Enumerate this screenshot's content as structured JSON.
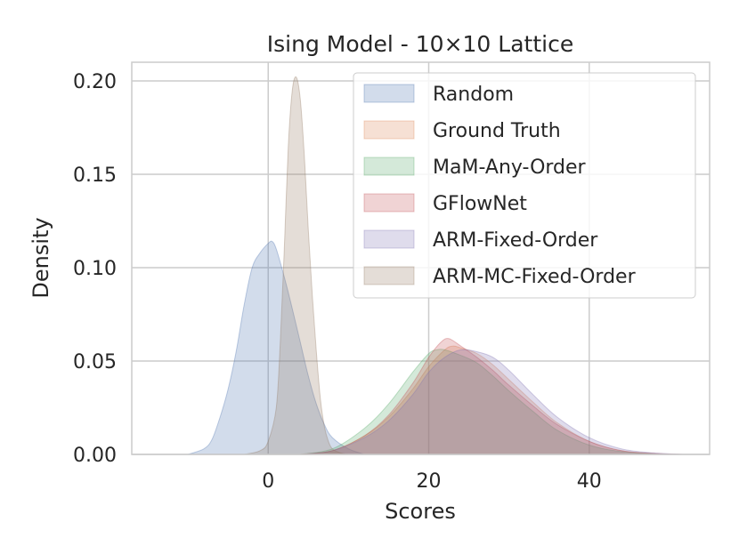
{
  "chart_data": {
    "type": "area",
    "title": "Ising Model - 10×10 Lattice",
    "xlabel": "Scores",
    "ylabel": "Density",
    "xlim": [
      -17,
      55
    ],
    "ylim": [
      0,
      0.21
    ],
    "xticks": [
      0,
      20,
      40
    ],
    "xtick_labels": [
      "0",
      "20",
      "40"
    ],
    "yticks": [
      0,
      0.05,
      0.1,
      0.15,
      0.2
    ],
    "ytick_labels": [
      "0.00",
      "0.05",
      "0.10",
      "0.15",
      "0.20"
    ],
    "grid": true,
    "legend_position": "top-right",
    "series": [
      {
        "name": "Random",
        "color": "#4c72b0",
        "x": [
          -10,
          -8,
          -7,
          -6,
          -5,
          -4,
          -3,
          -2,
          -1,
          0,
          0.5,
          1,
          2,
          3,
          4,
          5,
          6,
          7,
          8,
          10,
          12
        ],
        "y": [
          0.0,
          0.003,
          0.008,
          0.02,
          0.035,
          0.055,
          0.08,
          0.1,
          0.108,
          0.113,
          0.114,
          0.11,
          0.095,
          0.078,
          0.06,
          0.042,
          0.027,
          0.016,
          0.009,
          0.003,
          0.0
        ]
      },
      {
        "name": "Ground Truth",
        "color": "#dd8452",
        "x": [
          4,
          8,
          12,
          15,
          18,
          20,
          22,
          23,
          24,
          26,
          28,
          30,
          33,
          36,
          40,
          44,
          48,
          52
        ],
        "y": [
          0.0,
          0.002,
          0.01,
          0.02,
          0.035,
          0.047,
          0.056,
          0.058,
          0.057,
          0.054,
          0.048,
          0.04,
          0.028,
          0.017,
          0.007,
          0.002,
          0.0005,
          0.0
        ]
      },
      {
        "name": "MaM-Any-Order",
        "color": "#55a868",
        "x": [
          4,
          8,
          12,
          15,
          18,
          20,
          21,
          22,
          24,
          26,
          28,
          30,
          33,
          36,
          40,
          44,
          48,
          50
        ],
        "y": [
          0.0,
          0.003,
          0.014,
          0.027,
          0.044,
          0.054,
          0.056,
          0.056,
          0.053,
          0.049,
          0.042,
          0.034,
          0.023,
          0.013,
          0.005,
          0.0015,
          0.0003,
          0.0
        ]
      },
      {
        "name": "GFlowNet",
        "color": "#c44e52",
        "x": [
          4,
          8,
          12,
          15,
          18,
          20,
          21.5,
          22.5,
          24,
          26,
          28,
          30,
          33,
          36,
          40,
          44,
          48,
          52
        ],
        "y": [
          0.0,
          0.002,
          0.01,
          0.021,
          0.038,
          0.052,
          0.06,
          0.062,
          0.058,
          0.052,
          0.045,
          0.037,
          0.026,
          0.016,
          0.007,
          0.002,
          0.0005,
          0.0
        ]
      },
      {
        "name": "ARM-Fixed-Order",
        "color": "#8172b3",
        "x": [
          4,
          8,
          12,
          15,
          18,
          20,
          22,
          24,
          26,
          28,
          30,
          33,
          36,
          40,
          44,
          48,
          52
        ],
        "y": [
          0.0,
          0.002,
          0.009,
          0.018,
          0.032,
          0.044,
          0.052,
          0.056,
          0.055,
          0.052,
          0.045,
          0.032,
          0.02,
          0.009,
          0.003,
          0.0008,
          0.0
        ]
      },
      {
        "name": "ARM-MC-Fixed-Order",
        "color": "#937860",
        "x": [
          -3,
          -1,
          0,
          1,
          1.5,
          2,
          2.5,
          3,
          3.5,
          4,
          4.5,
          5,
          5.5,
          6,
          6.5,
          7,
          7.5,
          8,
          9,
          10
        ],
        "y": [
          0.0,
          0.002,
          0.007,
          0.025,
          0.06,
          0.11,
          0.165,
          0.195,
          0.202,
          0.19,
          0.16,
          0.12,
          0.085,
          0.055,
          0.03,
          0.015,
          0.007,
          0.003,
          0.0008,
          0.0
        ]
      }
    ]
  }
}
